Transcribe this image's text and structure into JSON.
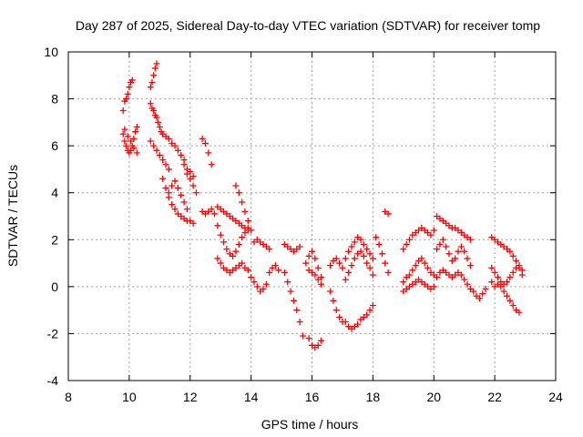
{
  "chart_data": {
    "type": "scatter",
    "title": "Day 287 of 2025, Sidereal Day-to-day VTEC variation (SDTVAR) for receiver tomp",
    "xlabel": "GPS time / hours",
    "ylabel": "SDTVAR / TECUs",
    "xlim": [
      8,
      24
    ],
    "ylim": [
      -4,
      10
    ],
    "xticks": [
      8,
      10,
      12,
      14,
      16,
      18,
      20,
      22,
      24
    ],
    "yticks": [
      -4,
      -2,
      0,
      2,
      4,
      6,
      8,
      10
    ],
    "grid": true,
    "marker": "plus",
    "color": "#ff0000",
    "series": [
      {
        "x": [
          9.8,
          9.85,
          9.9,
          9.95,
          10.0,
          10.05,
          10.1,
          9.8,
          9.85,
          9.9,
          9.95,
          10.0,
          10.05,
          10.1,
          10.15,
          10.2,
          10.25,
          9.85,
          9.95,
          10.05,
          10.15,
          10.25,
          10.7,
          10.75,
          10.8,
          10.85,
          10.9,
          10.7,
          10.75,
          10.8,
          10.85,
          10.9,
          10.95,
          11.0,
          11.05,
          11.1,
          10.7,
          10.8,
          10.9,
          11.0,
          11.1,
          11.2,
          11.3,
          11.1,
          11.2,
          11.3,
          11.4,
          11.5,
          11.6,
          11.7,
          11.8,
          11.9,
          11.2,
          11.3,
          11.4,
          11.5,
          11.6,
          11.7,
          11.8,
          11.3,
          11.4,
          11.5,
          11.6,
          11.7,
          11.8,
          11.9,
          12.0,
          12.1,
          11.9,
          12.0,
          12.1,
          12.2,
          11.8,
          11.9,
          12.0,
          12.1,
          12.4,
          12.5,
          12.6,
          12.7,
          12.4,
          12.5,
          12.6,
          12.7,
          12.8,
          12.9,
          13.0,
          13.1,
          13.2,
          13.3,
          13.4,
          13.5,
          13.6,
          13.7,
          13.8,
          13.9,
          12.9,
          13.0,
          13.1,
          13.2,
          13.3,
          13.4,
          13.5,
          13.6,
          13.7,
          13.8,
          13.9,
          12.9,
          13.0,
          13.1,
          13.2,
          13.3,
          13.4,
          13.5,
          13.6,
          13.7,
          13.8,
          13.9,
          13.5,
          13.6,
          13.7,
          13.8,
          13.9,
          14.0,
          14.1,
          14.2,
          14.3,
          14.4,
          14.5,
          14.6,
          14.0,
          14.1,
          14.2,
          14.3,
          14.4,
          14.5,
          14.6,
          14.7,
          14.8,
          14.9,
          15.1,
          15.2,
          15.3,
          15.4,
          15.5,
          15.6,
          15.1,
          15.2,
          15.3,
          15.4,
          15.5,
          15.6,
          15.7,
          15.8,
          15.9,
          16.0,
          16.1,
          16.2,
          16.3,
          15.9,
          16.0,
          16.1,
          16.2,
          16.3,
          15.9,
          16.0,
          16.1,
          16.2,
          16.3,
          16.6,
          16.7,
          16.8,
          16.9,
          17.0,
          16.6,
          16.7,
          16.8,
          16.9,
          17.0,
          17.1,
          17.2,
          17.3,
          17.4,
          17.5,
          17.6,
          17.7,
          17.8,
          17.9,
          18.0,
          17.1,
          17.2,
          17.3,
          17.4,
          17.5,
          17.6,
          17.7,
          17.8,
          17.9,
          18.0,
          17.1,
          17.2,
          17.3,
          17.4,
          17.5,
          17.6,
          17.7,
          17.8,
          17.9,
          18.0,
          18.1,
          18.2,
          18.3,
          18.4,
          18.5,
          18.4,
          18.5,
          19.0,
          19.1,
          19.2,
          19.3,
          19.4,
          19.5,
          19.6,
          19.7,
          19.8,
          19.9,
          20.0,
          19.0,
          19.1,
          19.2,
          19.3,
          19.4,
          19.5,
          19.6,
          19.7,
          19.8,
          19.9,
          20.0,
          19.0,
          19.1,
          19.2,
          19.3,
          19.4,
          19.5,
          19.6,
          19.7,
          19.8,
          19.9,
          20.0,
          20.1,
          20.2,
          20.3,
          20.4,
          20.5,
          20.6,
          20.7,
          20.8,
          20.9,
          21.0,
          21.1,
          21.2,
          20.1,
          20.2,
          20.3,
          20.4,
          20.5,
          20.6,
          20.7,
          20.8,
          20.9,
          21.0,
          21.1,
          21.2,
          20.1,
          20.2,
          20.3,
          20.4,
          20.5,
          20.6,
          20.7,
          20.8,
          20.9,
          21.0,
          21.1,
          21.2,
          21.3,
          21.4,
          21.5,
          21.6,
          21.7,
          21.9,
          22.0,
          22.1,
          22.2,
          22.3,
          22.4,
          22.5,
          22.6,
          22.7,
          22.8,
          22.9,
          21.9,
          22.0,
          22.1,
          22.2,
          22.3,
          22.4,
          22.5,
          22.6,
          22.7,
          22.8,
          22.9,
          21.9,
          22.0,
          22.1,
          22.2,
          22.3,
          22.4,
          22.5,
          22.6,
          22.7,
          22.8
        ],
        "y": [
          7.5,
          7.9,
          8.0,
          8.2,
          8.5,
          8.7,
          8.8,
          6.5,
          6.2,
          6.0,
          5.8,
          5.7,
          5.8,
          6.0,
          6.3,
          6.6,
          6.8,
          6.7,
          6.4,
          6.2,
          5.9,
          5.7,
          8.5,
          8.7,
          9.0,
          9.3,
          9.5,
          7.8,
          7.6,
          7.5,
          7.3,
          7.2,
          7.0,
          6.8,
          6.6,
          6.5,
          6.2,
          6.0,
          5.8,
          5.6,
          5.4,
          5.2,
          5.0,
          4.6,
          4.2,
          4.0,
          4.3,
          4.5,
          4.2,
          3.9,
          3.6,
          3.3,
          6.4,
          6.3,
          6.1,
          6.0,
          5.8,
          5.6,
          5.4,
          3.8,
          3.5,
          3.3,
          3.1,
          3.0,
          2.9,
          2.8,
          2.8,
          2.7,
          4.8,
          4.6,
          4.3,
          4.0,
          5.2,
          5.0,
          4.9,
          4.7,
          6.3,
          6.1,
          5.7,
          5.2,
          3.2,
          3.1,
          3.2,
          3.3,
          3.1,
          3.4,
          3.3,
          3.2,
          3.1,
          3.0,
          2.9,
          2.8,
          2.7,
          2.6,
          2.5,
          2.4,
          2.6,
          2.2,
          1.9,
          1.6,
          1.4,
          1.3,
          1.5,
          1.8,
          2.1,
          2.3,
          2.5,
          1.2,
          1.0,
          0.8,
          0.7,
          0.6,
          0.7,
          0.8,
          0.9,
          1.0,
          0.8,
          0.7,
          4.3,
          4.0,
          3.6,
          3.2,
          2.8,
          2.4,
          1.9,
          2.0,
          1.9,
          1.8,
          1.7,
          1.6,
          0.4,
          0.2,
          0.0,
          -0.2,
          -0.1,
          0.1,
          0.6,
          0.8,
          0.9,
          0.7,
          1.8,
          1.7,
          1.6,
          1.5,
          1.6,
          1.7,
          0.6,
          0.2,
          -0.2,
          -0.6,
          -1.0,
          -1.5,
          -2.1,
          1.0,
          1.3,
          1.5,
          1.2,
          0.8,
          0.4,
          -2.2,
          -2.5,
          -2.6,
          -2.5,
          -2.3,
          0.7,
          0.6,
          0.5,
          0.3,
          0.1,
          0.9,
          1.1,
          1.2,
          1.0,
          0.8,
          -0.2,
          -0.6,
          -1.0,
          -1.3,
          -1.5,
          1.2,
          1.5,
          1.7,
          1.9,
          2.1,
          2.0,
          1.8,
          1.6,
          1.4,
          1.2,
          0.3,
          0.6,
          0.9,
          1.2,
          1.4,
          1.5,
          1.3,
          1.0,
          0.8,
          0.5,
          -1.5,
          -1.7,
          -1.8,
          -1.7,
          -1.6,
          -1.4,
          -1.3,
          -1.2,
          -1.0,
          -0.8,
          2.1,
          1.8,
          1.4,
          1.0,
          0.6,
          3.2,
          3.1,
          1.6,
          1.8,
          2.0,
          2.2,
          2.3,
          2.4,
          2.5,
          2.4,
          2.3,
          2.2,
          2.4,
          0.2,
          0.4,
          0.5,
          0.7,
          0.9,
          1.1,
          1.2,
          1.0,
          0.8,
          0.6,
          0.5,
          -0.2,
          -0.1,
          0.0,
          0.1,
          0.2,
          0.3,
          0.2,
          0.1,
          0.0,
          -0.1,
          0.0,
          3.0,
          2.9,
          2.8,
          2.7,
          2.6,
          2.5,
          2.5,
          2.4,
          2.3,
          2.2,
          2.1,
          2.0,
          1.6,
          1.8,
          2.0,
          1.7,
          1.4,
          1.1,
          1.2,
          1.5,
          1.7,
          1.5,
          1.2,
          0.9,
          0.4,
          0.6,
          0.7,
          0.6,
          0.5,
          0.4,
          0.5,
          0.6,
          0.5,
          0.3,
          0.1,
          -0.1,
          -0.2,
          -0.4,
          -0.5,
          -0.3,
          -0.1,
          2.1,
          2.0,
          1.9,
          1.8,
          1.7,
          1.6,
          1.5,
          1.3,
          1.1,
          0.8,
          0.5,
          0.8,
          0.6,
          0.4,
          0.2,
          0.1,
          0.2,
          0.4,
          0.6,
          0.8,
          0.9,
          0.7,
          0.2,
          0.0,
          0.1,
          0.0,
          -0.2,
          -0.4,
          -0.6,
          -0.8,
          -1.0,
          -1.1
        ]
      }
    ]
  }
}
